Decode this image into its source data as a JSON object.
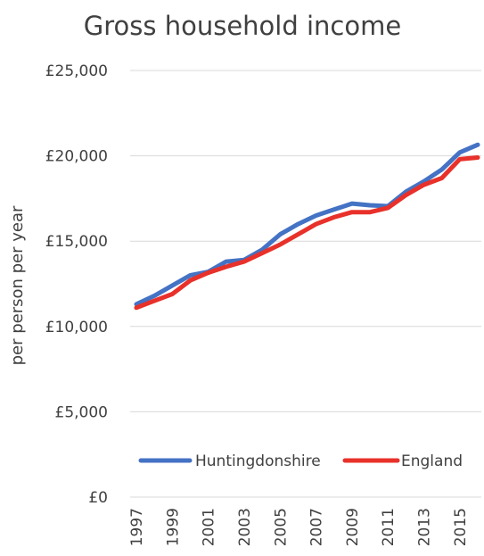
{
  "chart_data": {
    "type": "line",
    "title": "Gross household income",
    "ylabel": "per person per year",
    "xlabel": "",
    "ylim": [
      0,
      25000
    ],
    "yticks": [
      0,
      5000,
      10000,
      15000,
      20000,
      25000
    ],
    "ytick_labels": [
      "£0",
      "£5,000",
      "£10,000",
      "£15,000",
      "£20,000",
      "£25,000"
    ],
    "x": [
      1997,
      1998,
      1999,
      2000,
      2001,
      2002,
      2003,
      2004,
      2005,
      2006,
      2007,
      2008,
      2009,
      2010,
      2011,
      2012,
      2013,
      2014,
      2015,
      2016
    ],
    "xtick_labels": [
      "1997",
      "1999",
      "2001",
      "2003",
      "2005",
      "2007",
      "2009",
      "2011",
      "2013",
      "2015"
    ],
    "series": [
      {
        "name": "Huntingdonshire",
        "color": "#4472c4",
        "values": [
          11300,
          11800,
          12400,
          13000,
          13200,
          13800,
          13900,
          14500,
          15400,
          16000,
          16500,
          16850,
          17200,
          17100,
          17050,
          17900,
          18500,
          19200,
          20200,
          20650
        ]
      },
      {
        "name": "England",
        "color": "#e8312a",
        "values": [
          11100,
          11500,
          11900,
          12700,
          13150,
          13500,
          13800,
          14300,
          14800,
          15400,
          16000,
          16400,
          16700,
          16700,
          16950,
          17700,
          18300,
          18700,
          19800,
          19900
        ]
      }
    ],
    "grid": true,
    "legend_position": "lower-right"
  }
}
